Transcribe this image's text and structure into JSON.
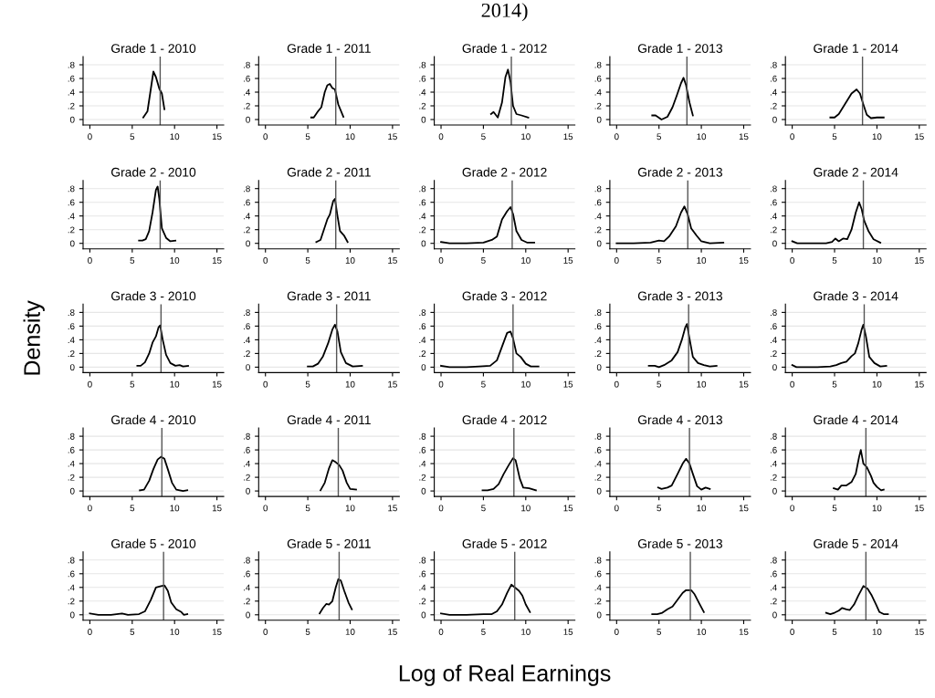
{
  "chart_data": [
    {
      "type": "line",
      "title": "Grade 1 - 2010",
      "x": [
        6.3,
        6.8,
        7.2,
        7.5,
        7.8,
        8.2,
        8.5,
        8.8
      ],
      "values": [
        0.03,
        0.12,
        0.45,
        0.7,
        0.62,
        0.45,
        0.38,
        0.15
      ],
      "color": "#000000",
      "xlim": [
        -0.8,
        15.8
      ],
      "ylim": [
        -0.08,
        0.92
      ],
      "xticks": [
        0,
        5,
        10,
        15
      ],
      "yticks": [
        0,
        {
          "value": 0.2,
          "label": ".2"
        },
        {
          "value": 0.4,
          "label": ".4"
        },
        {
          "value": 0.6,
          "label": ".6"
        },
        {
          "value": 0.8,
          "label": ".8"
        }
      ],
      "grid": "y",
      "ref_lines": [
        {
          "axis": "x",
          "value": 8.3,
          "color": "#555555"
        }
      ]
    },
    {
      "type": "line",
      "title": "Grade 1 - 2011",
      "x": [
        5.4,
        5.7,
        6.2,
        6.6,
        7.0,
        7.3,
        7.6,
        7.9,
        8.2,
        8.6,
        9.2
      ],
      "values": [
        0.03,
        0.03,
        0.12,
        0.18,
        0.4,
        0.5,
        0.52,
        0.46,
        0.44,
        0.22,
        0.04
      ],
      "color": "#000000",
      "xlim": [
        -0.8,
        15.8
      ],
      "ylim": [
        -0.08,
        0.92
      ],
      "xticks": [
        0,
        5,
        10,
        15
      ],
      "yticks": [
        0,
        {
          "value": 0.2,
          "label": ".2"
        },
        {
          "value": 0.4,
          "label": ".4"
        },
        {
          "value": 0.6,
          "label": ".6"
        },
        {
          "value": 0.8,
          "label": ".8"
        }
      ],
      "grid": "y",
      "ref_lines": [
        {
          "axis": "x",
          "value": 8.3,
          "color": "#555555"
        }
      ]
    },
    {
      "type": "line",
      "title": "Grade 1 - 2012",
      "x": [
        5.9,
        6.2,
        6.7,
        7.2,
        7.6,
        7.9,
        8.2,
        8.5,
        8.9,
        9.5,
        10.3
      ],
      "values": [
        0.08,
        0.11,
        0.03,
        0.25,
        0.62,
        0.73,
        0.55,
        0.2,
        0.08,
        0.06,
        0.03
      ],
      "color": "#000000",
      "xlim": [
        -0.8,
        15.8
      ],
      "ylim": [
        -0.08,
        0.92
      ],
      "xticks": [
        0,
        5,
        10,
        15
      ],
      "yticks": [
        0,
        {
          "value": 0.2,
          "label": ".2"
        },
        {
          "value": 0.4,
          "label": ".4"
        },
        {
          "value": 0.6,
          "label": ".6"
        },
        {
          "value": 0.8,
          "label": ".8"
        }
      ],
      "grid": "y",
      "ref_lines": [
        {
          "axis": "x",
          "value": 8.3,
          "color": "#555555"
        }
      ],
      "annotations": [
        "2014)"
      ]
    },
    {
      "type": "line",
      "title": "Grade 1 - 2013",
      "x": [
        4.2,
        4.6,
        5.3,
        6.0,
        6.6,
        7.1,
        7.6,
        7.9,
        8.2,
        8.6,
        9.0
      ],
      "values": [
        0.06,
        0.06,
        0.0,
        0.04,
        0.18,
        0.35,
        0.53,
        0.61,
        0.5,
        0.25,
        0.06
      ],
      "color": "#000000",
      "xlim": [
        -0.8,
        15.8
      ],
      "ylim": [
        -0.08,
        0.92
      ],
      "xticks": [
        0,
        5,
        10,
        15
      ],
      "yticks": [
        0,
        {
          "value": 0.2,
          "label": ".2"
        },
        {
          "value": 0.4,
          "label": ".4"
        },
        {
          "value": 0.6,
          "label": ".6"
        },
        {
          "value": 0.8,
          "label": ".8"
        }
      ],
      "grid": "y",
      "ref_lines": [
        {
          "axis": "x",
          "value": 8.3,
          "color": "#555555"
        }
      ]
    },
    {
      "type": "line",
      "title": "Grade 1 - 2014",
      "x": [
        4.5,
        5.0,
        5.5,
        6.2,
        7.0,
        7.6,
        8.0,
        8.4,
        8.8,
        9.3,
        10.0,
        10.8
      ],
      "values": [
        0.03,
        0.03,
        0.08,
        0.22,
        0.38,
        0.44,
        0.38,
        0.22,
        0.07,
        0.02,
        0.03,
        0.03
      ],
      "color": "#000000",
      "xlim": [
        -0.8,
        15.8
      ],
      "ylim": [
        -0.08,
        0.92
      ],
      "xticks": [
        0,
        5,
        10,
        15
      ],
      "yticks": [
        0,
        {
          "value": 0.2,
          "label": ".2"
        },
        {
          "value": 0.4,
          "label": ".4"
        },
        {
          "value": 0.6,
          "label": ".6"
        },
        {
          "value": 0.8,
          "label": ".8"
        }
      ],
      "grid": "y",
      "ref_lines": [
        {
          "axis": "x",
          "value": 8.3,
          "color": "#555555"
        }
      ]
    },
    {
      "type": "line",
      "title": "Grade 2 - 2010",
      "x": [
        5.8,
        6.2,
        6.6,
        7.0,
        7.4,
        7.8,
        8.0,
        8.2,
        8.5,
        9.0,
        9.5,
        10.1
      ],
      "values": [
        0.04,
        0.04,
        0.06,
        0.18,
        0.45,
        0.78,
        0.83,
        0.65,
        0.22,
        0.08,
        0.03,
        0.04
      ],
      "color": "#000000",
      "xlim": [
        -0.8,
        15.8
      ],
      "ylim": [
        -0.08,
        0.92
      ],
      "xticks": [
        0,
        5,
        10,
        15
      ],
      "yticks": [
        0,
        {
          "value": 0.2,
          "label": ".2"
        },
        {
          "value": 0.4,
          "label": ".4"
        },
        {
          "value": 0.6,
          "label": ".6"
        },
        {
          "value": 0.8,
          "label": ".8"
        }
      ],
      "grid": "y",
      "ref_lines": [
        {
          "axis": "x",
          "value": 8.3,
          "color": "#555555"
        }
      ]
    },
    {
      "type": "line",
      "title": "Grade 2 - 2011",
      "x": [
        6.0,
        6.5,
        6.9,
        7.3,
        7.6,
        8.0,
        8.2,
        8.5,
        8.8,
        9.3,
        9.7
      ],
      "values": [
        0.02,
        0.05,
        0.2,
        0.35,
        0.42,
        0.62,
        0.65,
        0.4,
        0.18,
        0.11,
        0.02
      ],
      "color": "#000000",
      "xlim": [
        -0.8,
        15.8
      ],
      "ylim": [
        -0.08,
        0.92
      ],
      "xticks": [
        0,
        5,
        10,
        15
      ],
      "yticks": [
        0,
        {
          "value": 0.2,
          "label": ".2"
        },
        {
          "value": 0.4,
          "label": ".4"
        },
        {
          "value": 0.6,
          "label": ".6"
        },
        {
          "value": 0.8,
          "label": ".8"
        }
      ],
      "grid": "y",
      "ref_lines": [
        {
          "axis": "x",
          "value": 8.3,
          "color": "#555555"
        }
      ]
    },
    {
      "type": "line",
      "title": "Grade 2 - 2012",
      "x": [
        0,
        1,
        3,
        5,
        6,
        6.6,
        7.2,
        7.8,
        8.2,
        8.5,
        8.9,
        9.5,
        10.2,
        11.0
      ],
      "values": [
        0.02,
        0.0,
        0.0,
        0.01,
        0.05,
        0.1,
        0.35,
        0.47,
        0.53,
        0.43,
        0.18,
        0.05,
        0.01,
        0.01
      ],
      "color": "#000000",
      "xlim": [
        -0.8,
        15.8
      ],
      "ylim": [
        -0.08,
        0.92
      ],
      "xticks": [
        0,
        5,
        10,
        15
      ],
      "yticks": [
        0,
        {
          "value": 0.2,
          "label": ".2"
        },
        {
          "value": 0.4,
          "label": ".4"
        },
        {
          "value": 0.6,
          "label": ".6"
        },
        {
          "value": 0.8,
          "label": ".8"
        }
      ],
      "grid": "y",
      "ref_lines": [
        {
          "axis": "x",
          "value": 8.4,
          "color": "#555555"
        }
      ]
    },
    {
      "type": "line",
      "title": "Grade 2 - 2013",
      "x": [
        0,
        2,
        4,
        5,
        5.6,
        6.2,
        7.0,
        7.6,
        8.0,
        8.4,
        8.8,
        9.4,
        10.0,
        11.0,
        12.6
      ],
      "values": [
        0.0,
        0.0,
        0.01,
        0.04,
        0.03,
        0.1,
        0.25,
        0.45,
        0.54,
        0.42,
        0.22,
        0.12,
        0.03,
        0.0,
        0.01
      ],
      "color": "#000000",
      "xlim": [
        -0.8,
        15.8
      ],
      "ylim": [
        -0.08,
        0.92
      ],
      "xticks": [
        0,
        5,
        10,
        15
      ],
      "yticks": [
        0,
        {
          "value": 0.2,
          "label": ".2"
        },
        {
          "value": 0.4,
          "label": ".4"
        },
        {
          "value": 0.6,
          "label": ".6"
        },
        {
          "value": 0.8,
          "label": ".8"
        }
      ],
      "grid": "y",
      "ref_lines": [
        {
          "axis": "x",
          "value": 8.4,
          "color": "#555555"
        }
      ]
    },
    {
      "type": "line",
      "title": "Grade 2 - 2014",
      "x": [
        0,
        0.6,
        2,
        4,
        4.7,
        5.1,
        5.5,
        6.0,
        6.5,
        7.0,
        7.5,
        7.9,
        8.2,
        8.5,
        9.0,
        9.6,
        10.4
      ],
      "values": [
        0.03,
        0.0,
        0.0,
        0.0,
        0.02,
        0.07,
        0.03,
        0.07,
        0.06,
        0.2,
        0.45,
        0.6,
        0.5,
        0.33,
        0.18,
        0.06,
        0.01
      ],
      "color": "#000000",
      "xlim": [
        -0.8,
        15.8
      ],
      "ylim": [
        -0.08,
        0.92
      ],
      "xticks": [
        0,
        5,
        10,
        15
      ],
      "yticks": [
        0,
        {
          "value": 0.2,
          "label": ".2"
        },
        {
          "value": 0.4,
          "label": ".4"
        },
        {
          "value": 0.6,
          "label": ".6"
        },
        {
          "value": 0.8,
          "label": ".8"
        }
      ],
      "grid": "y",
      "ref_lines": [
        {
          "axis": "x",
          "value": 8.4,
          "color": "#555555"
        }
      ]
    },
    {
      "type": "line",
      "title": "Grade 3 - 2010",
      "ylabel": "Density",
      "x": [
        5.6,
        6.0,
        6.5,
        7.0,
        7.4,
        7.8,
        8.1,
        8.3,
        8.6,
        9.0,
        9.5,
        10.1,
        10.6,
        11.0,
        11.6
      ],
      "values": [
        0.02,
        0.02,
        0.07,
        0.2,
        0.36,
        0.45,
        0.58,
        0.61,
        0.4,
        0.18,
        0.06,
        0.02,
        0.03,
        0.01,
        0.02
      ],
      "color": "#000000",
      "xlim": [
        -0.8,
        15.8
      ],
      "ylim": [
        -0.08,
        0.92
      ],
      "xticks": [
        0,
        5,
        10,
        15
      ],
      "yticks": [
        0,
        {
          "value": 0.2,
          "label": ".2"
        },
        {
          "value": 0.4,
          "label": ".4"
        },
        {
          "value": 0.6,
          "label": ".6"
        },
        {
          "value": 0.8,
          "label": ".8"
        }
      ],
      "grid": "y",
      "ref_lines": [
        {
          "axis": "x",
          "value": 8.4,
          "color": "#555555"
        }
      ]
    },
    {
      "type": "line",
      "title": "Grade 3 - 2011",
      "x": [
        5.0,
        5.6,
        6.2,
        6.8,
        7.4,
        7.9,
        8.2,
        8.5,
        8.9,
        9.5,
        10.3,
        11.4
      ],
      "values": [
        0.01,
        0.01,
        0.05,
        0.16,
        0.35,
        0.55,
        0.62,
        0.52,
        0.22,
        0.06,
        0.01,
        0.02
      ],
      "color": "#000000",
      "xlim": [
        -0.8,
        15.8
      ],
      "ylim": [
        -0.08,
        0.92
      ],
      "xticks": [
        0,
        5,
        10,
        15
      ],
      "yticks": [
        0,
        {
          "value": 0.2,
          "label": ".2"
        },
        {
          "value": 0.4,
          "label": ".4"
        },
        {
          "value": 0.6,
          "label": ".6"
        },
        {
          "value": 0.8,
          "label": ".8"
        }
      ],
      "grid": "y",
      "ref_lines": [
        {
          "axis": "x",
          "value": 8.4,
          "color": "#555555"
        }
      ]
    },
    {
      "type": "line",
      "title": "Grade 3 - 2012",
      "x": [
        0,
        1,
        3,
        4.5,
        5.8,
        6.6,
        7.2,
        7.8,
        8.2,
        8.5,
        8.9,
        9.4,
        10.0,
        10.6,
        11.5
      ],
      "values": [
        0.02,
        0.0,
        0.0,
        0.01,
        0.02,
        0.1,
        0.3,
        0.5,
        0.52,
        0.42,
        0.2,
        0.15,
        0.05,
        0.01,
        0.01
      ],
      "color": "#000000",
      "xlim": [
        -0.8,
        15.8
      ],
      "ylim": [
        -0.08,
        0.92
      ],
      "xticks": [
        0,
        5,
        10,
        15
      ],
      "yticks": [
        0,
        {
          "value": 0.2,
          "label": ".2"
        },
        {
          "value": 0.4,
          "label": ".4"
        },
        {
          "value": 0.6,
          "label": ".6"
        },
        {
          "value": 0.8,
          "label": ".8"
        }
      ],
      "grid": "y",
      "ref_lines": [
        {
          "axis": "x",
          "value": 8.5,
          "color": "#555555"
        }
      ]
    },
    {
      "type": "line",
      "title": "Grade 3 - 2013",
      "x": [
        3.8,
        4.5,
        5.0,
        5.6,
        6.5,
        7.2,
        7.7,
        8.1,
        8.3,
        8.6,
        9.0,
        9.6,
        10.3,
        11.0,
        11.8
      ],
      "values": [
        0.02,
        0.02,
        0.0,
        0.03,
        0.1,
        0.22,
        0.4,
        0.58,
        0.63,
        0.42,
        0.15,
        0.06,
        0.03,
        0.01,
        0.02
      ],
      "color": "#000000",
      "xlim": [
        -0.8,
        15.8
      ],
      "ylim": [
        -0.08,
        0.92
      ],
      "xticks": [
        0,
        5,
        10,
        15
      ],
      "yticks": [
        0,
        {
          "value": 0.2,
          "label": ".2"
        },
        {
          "value": 0.4,
          "label": ".4"
        },
        {
          "value": 0.6,
          "label": ".6"
        },
        {
          "value": 0.8,
          "label": ".8"
        }
      ],
      "grid": "y",
      "ref_lines": [
        {
          "axis": "x",
          "value": 8.5,
          "color": "#555555"
        }
      ]
    },
    {
      "type": "line",
      "title": "Grade 3 - 2014",
      "x": [
        0,
        0.5,
        3,
        4.5,
        5.2,
        5.8,
        6.4,
        7.0,
        7.4,
        7.8,
        8.2,
        8.4,
        8.7,
        9.1,
        9.7,
        10.4,
        11.1
      ],
      "values": [
        0.03,
        0.0,
        0.0,
        0.01,
        0.03,
        0.06,
        0.08,
        0.16,
        0.2,
        0.35,
        0.55,
        0.62,
        0.45,
        0.15,
        0.06,
        0.01,
        0.02
      ],
      "color": "#000000",
      "xlim": [
        -0.8,
        15.8
      ],
      "ylim": [
        -0.08,
        0.92
      ],
      "xticks": [
        0,
        5,
        10,
        15
      ],
      "yticks": [
        0,
        {
          "value": 0.2,
          "label": ".2"
        },
        {
          "value": 0.4,
          "label": ".4"
        },
        {
          "value": 0.6,
          "label": ".6"
        },
        {
          "value": 0.8,
          "label": ".8"
        }
      ],
      "grid": "y",
      "ref_lines": [
        {
          "axis": "x",
          "value": 8.5,
          "color": "#555555"
        }
      ]
    },
    {
      "type": "line",
      "title": "Grade 4 - 2010",
      "x": [
        5.9,
        6.4,
        7.0,
        7.5,
        8.0,
        8.4,
        8.8,
        9.2,
        9.7,
        10.2,
        11.0,
        11.5
      ],
      "values": [
        0.01,
        0.02,
        0.15,
        0.32,
        0.46,
        0.5,
        0.47,
        0.32,
        0.12,
        0.02,
        0.0,
        0.01
      ],
      "color": "#000000",
      "xlim": [
        -0.8,
        15.8
      ],
      "ylim": [
        -0.08,
        0.92
      ],
      "xticks": [
        0,
        5,
        10,
        15
      ],
      "yticks": [
        0,
        {
          "value": 0.2,
          "label": ".2"
        },
        {
          "value": 0.4,
          "label": ".4"
        },
        {
          "value": 0.6,
          "label": ".6"
        },
        {
          "value": 0.8,
          "label": ".8"
        }
      ],
      "grid": "y",
      "ref_lines": [
        {
          "axis": "x",
          "value": 8.5,
          "color": "#555555"
        }
      ]
    },
    {
      "type": "line",
      "title": "Grade 4 - 2011",
      "x": [
        6.5,
        7.0,
        7.5,
        7.9,
        8.3,
        8.7,
        9.1,
        9.6,
        10.0,
        10.7
      ],
      "values": [
        0.01,
        0.12,
        0.33,
        0.45,
        0.42,
        0.38,
        0.3,
        0.12,
        0.03,
        0.02
      ],
      "color": "#000000",
      "xlim": [
        -0.8,
        15.8
      ],
      "ylim": [
        -0.08,
        0.92
      ],
      "xticks": [
        0,
        5,
        10,
        15
      ],
      "yticks": [
        0,
        {
          "value": 0.2,
          "label": ".2"
        },
        {
          "value": 0.4,
          "label": ".4"
        },
        {
          "value": 0.6,
          "label": ".6"
        },
        {
          "value": 0.8,
          "label": ".8"
        }
      ],
      "grid": "y",
      "ref_lines": [
        {
          "axis": "x",
          "value": 8.6,
          "color": "#555555"
        }
      ]
    },
    {
      "type": "line",
      "title": "Grade 4 - 2012",
      "x": [
        4.9,
        5.5,
        6.2,
        6.8,
        7.4,
        8.0,
        8.5,
        8.8,
        9.3,
        9.7,
        10.4,
        11.2
      ],
      "values": [
        0.01,
        0.01,
        0.03,
        0.1,
        0.25,
        0.38,
        0.48,
        0.45,
        0.18,
        0.05,
        0.04,
        0.01
      ],
      "color": "#000000",
      "xlim": [
        -0.8,
        15.8
      ],
      "ylim": [
        -0.08,
        0.92
      ],
      "xticks": [
        0,
        5,
        10,
        15
      ],
      "yticks": [
        0,
        {
          "value": 0.2,
          "label": ".2"
        },
        {
          "value": 0.4,
          "label": ".4"
        },
        {
          "value": 0.6,
          "label": ".6"
        },
        {
          "value": 0.8,
          "label": ".8"
        }
      ],
      "grid": "y",
      "ref_lines": [
        {
          "axis": "x",
          "value": 8.6,
          "color": "#555555"
        }
      ]
    },
    {
      "type": "line",
      "title": "Grade 4 - 2013",
      "x": [
        4.9,
        5.3,
        6.0,
        6.5,
        7.2,
        7.8,
        8.2,
        8.6,
        9.0,
        9.5,
        10.0,
        10.5,
        11.0
      ],
      "values": [
        0.05,
        0.03,
        0.05,
        0.08,
        0.25,
        0.4,
        0.47,
        0.4,
        0.25,
        0.07,
        0.02,
        0.05,
        0.03
      ],
      "color": "#000000",
      "xlim": [
        -0.8,
        15.8
      ],
      "ylim": [
        -0.08,
        0.92
      ],
      "xticks": [
        0,
        5,
        10,
        15
      ],
      "yticks": [
        0,
        {
          "value": 0.2,
          "label": ".2"
        },
        {
          "value": 0.4,
          "label": ".4"
        },
        {
          "value": 0.6,
          "label": ".6"
        },
        {
          "value": 0.8,
          "label": ".8"
        }
      ],
      "grid": "y",
      "ref_lines": [
        {
          "axis": "x",
          "value": 8.6,
          "color": "#555555"
        }
      ]
    },
    {
      "type": "line",
      "title": "Grade 4 - 2014",
      "x": [
        4.9,
        5.4,
        5.8,
        6.4,
        7.0,
        7.5,
        7.9,
        8.1,
        8.4,
        8.8,
        9.3,
        9.6,
        10.0,
        10.5,
        10.8
      ],
      "values": [
        0.04,
        0.02,
        0.08,
        0.08,
        0.13,
        0.25,
        0.5,
        0.6,
        0.4,
        0.35,
        0.22,
        0.12,
        0.06,
        0.01,
        0.02
      ],
      "color": "#000000",
      "xlim": [
        -0.8,
        15.8
      ],
      "ylim": [
        -0.08,
        0.92
      ],
      "xticks": [
        0,
        5,
        10,
        15
      ],
      "yticks": [
        0,
        {
          "value": 0.2,
          "label": ".2"
        },
        {
          "value": 0.4,
          "label": ".4"
        },
        {
          "value": 0.6,
          "label": ".6"
        },
        {
          "value": 0.8,
          "label": ".8"
        }
      ],
      "grid": "y",
      "ref_lines": [
        {
          "axis": "x",
          "value": 8.7,
          "color": "#555555"
        }
      ]
    },
    {
      "type": "line",
      "title": "Grade 5 - 2010",
      "x": [
        0,
        1,
        2.5,
        3.8,
        4.5,
        5.8,
        6.5,
        7.2,
        7.8,
        8.4,
        8.8,
        9.2,
        9.6,
        10.2,
        10.8,
        11.1,
        11.5
      ],
      "values": [
        0.02,
        0.0,
        0.0,
        0.02,
        0.0,
        0.01,
        0.05,
        0.22,
        0.4,
        0.42,
        0.43,
        0.35,
        0.18,
        0.08,
        0.04,
        0.0,
        0.01
      ],
      "color": "#000000",
      "xlim": [
        -0.8,
        15.8
      ],
      "ylim": [
        -0.08,
        0.92
      ],
      "xticks": [
        0,
        5,
        10,
        15
      ],
      "yticks": [
        0,
        {
          "value": 0.2,
          "label": ".2"
        },
        {
          "value": 0.4,
          "label": ".4"
        },
        {
          "value": 0.6,
          "label": ".6"
        },
        {
          "value": 0.8,
          "label": ".8"
        }
      ],
      "grid": "y",
      "ref_lines": [
        {
          "axis": "x",
          "value": 8.7,
          "color": "#555555"
        }
      ]
    },
    {
      "type": "line",
      "title": "Grade 5 - 2011",
      "x": [
        6.4,
        6.8,
        7.2,
        7.5,
        7.9,
        8.3,
        8.6,
        8.9,
        9.3,
        9.8,
        10.2
      ],
      "values": [
        0.02,
        0.1,
        0.16,
        0.15,
        0.2,
        0.4,
        0.52,
        0.5,
        0.35,
        0.18,
        0.08
      ],
      "color": "#000000",
      "xlim": [
        -0.8,
        15.8
      ],
      "ylim": [
        -0.08,
        0.92
      ],
      "xticks": [
        0,
        5,
        10,
        15
      ],
      "yticks": [
        0,
        {
          "value": 0.2,
          "label": ".2"
        },
        {
          "value": 0.4,
          "label": ".4"
        },
        {
          "value": 0.6,
          "label": ".6"
        },
        {
          "value": 0.8,
          "label": ".8"
        }
      ],
      "grid": "y",
      "ref_lines": [
        {
          "axis": "x",
          "value": 8.7,
          "color": "#555555"
        }
      ]
    },
    {
      "type": "line",
      "title": "Grade 5 - 2012",
      "xlabel": "Log of Real Earnings",
      "x": [
        0,
        1,
        3,
        5,
        6.0,
        6.6,
        7.2,
        7.8,
        8.3,
        8.7,
        9.2,
        9.6,
        10.0,
        10.5
      ],
      "values": [
        0.02,
        0.0,
        0.0,
        0.01,
        0.01,
        0.05,
        0.15,
        0.32,
        0.44,
        0.4,
        0.35,
        0.28,
        0.15,
        0.04
      ],
      "color": "#000000",
      "xlim": [
        -0.8,
        15.8
      ],
      "ylim": [
        -0.08,
        0.92
      ],
      "xticks": [
        0,
        5,
        10,
        15
      ],
      "yticks": [
        0,
        {
          "value": 0.2,
          "label": ".2"
        },
        {
          "value": 0.4,
          "label": ".4"
        },
        {
          "value": 0.6,
          "label": ".6"
        },
        {
          "value": 0.8,
          "label": ".8"
        }
      ],
      "grid": "y",
      "ref_lines": [
        {
          "axis": "x",
          "value": 8.7,
          "color": "#555555"
        }
      ]
    },
    {
      "type": "line",
      "title": "Grade 5 - 2013",
      "x": [
        4.2,
        4.8,
        5.4,
        6.0,
        6.6,
        7.2,
        7.8,
        8.2,
        8.8,
        9.2,
        9.7,
        10.3
      ],
      "values": [
        0.01,
        0.01,
        0.03,
        0.08,
        0.12,
        0.22,
        0.32,
        0.36,
        0.36,
        0.3,
        0.18,
        0.04
      ],
      "color": "#000000",
      "xlim": [
        -0.8,
        15.8
      ],
      "ylim": [
        -0.08,
        0.92
      ],
      "xticks": [
        0,
        5,
        10,
        15
      ],
      "yticks": [
        0,
        {
          "value": 0.2,
          "label": ".2"
        },
        {
          "value": 0.4,
          "label": ".4"
        },
        {
          "value": 0.6,
          "label": ".6"
        },
        {
          "value": 0.8,
          "label": ".8"
        }
      ],
      "grid": "y",
      "ref_lines": [
        {
          "axis": "x",
          "value": 8.7,
          "color": "#555555"
        }
      ]
    },
    {
      "type": "line",
      "title": "Grade 5 - 2014",
      "x": [
        4.0,
        4.5,
        5.0,
        5.5,
        5.9,
        6.4,
        6.8,
        7.3,
        7.8,
        8.4,
        8.9,
        9.4,
        9.9,
        10.3,
        10.8,
        11.3
      ],
      "values": [
        0.03,
        0.01,
        0.03,
        0.06,
        0.1,
        0.08,
        0.07,
        0.15,
        0.28,
        0.42,
        0.38,
        0.28,
        0.15,
        0.04,
        0.01,
        0.01
      ],
      "color": "#000000",
      "xlim": [
        -0.8,
        15.8
      ],
      "ylim": [
        -0.08,
        0.92
      ],
      "xticks": [
        0,
        5,
        10,
        15
      ],
      "yticks": [
        0,
        {
          "value": 0.2,
          "label": ".2"
        },
        {
          "value": 0.4,
          "label": ".4"
        },
        {
          "value": 0.6,
          "label": ".6"
        },
        {
          "value": 0.8,
          "label": ".8"
        }
      ],
      "grid": "y",
      "ref_lines": [
        {
          "axis": "x",
          "value": 8.7,
          "color": "#555555"
        }
      ]
    }
  ]
}
